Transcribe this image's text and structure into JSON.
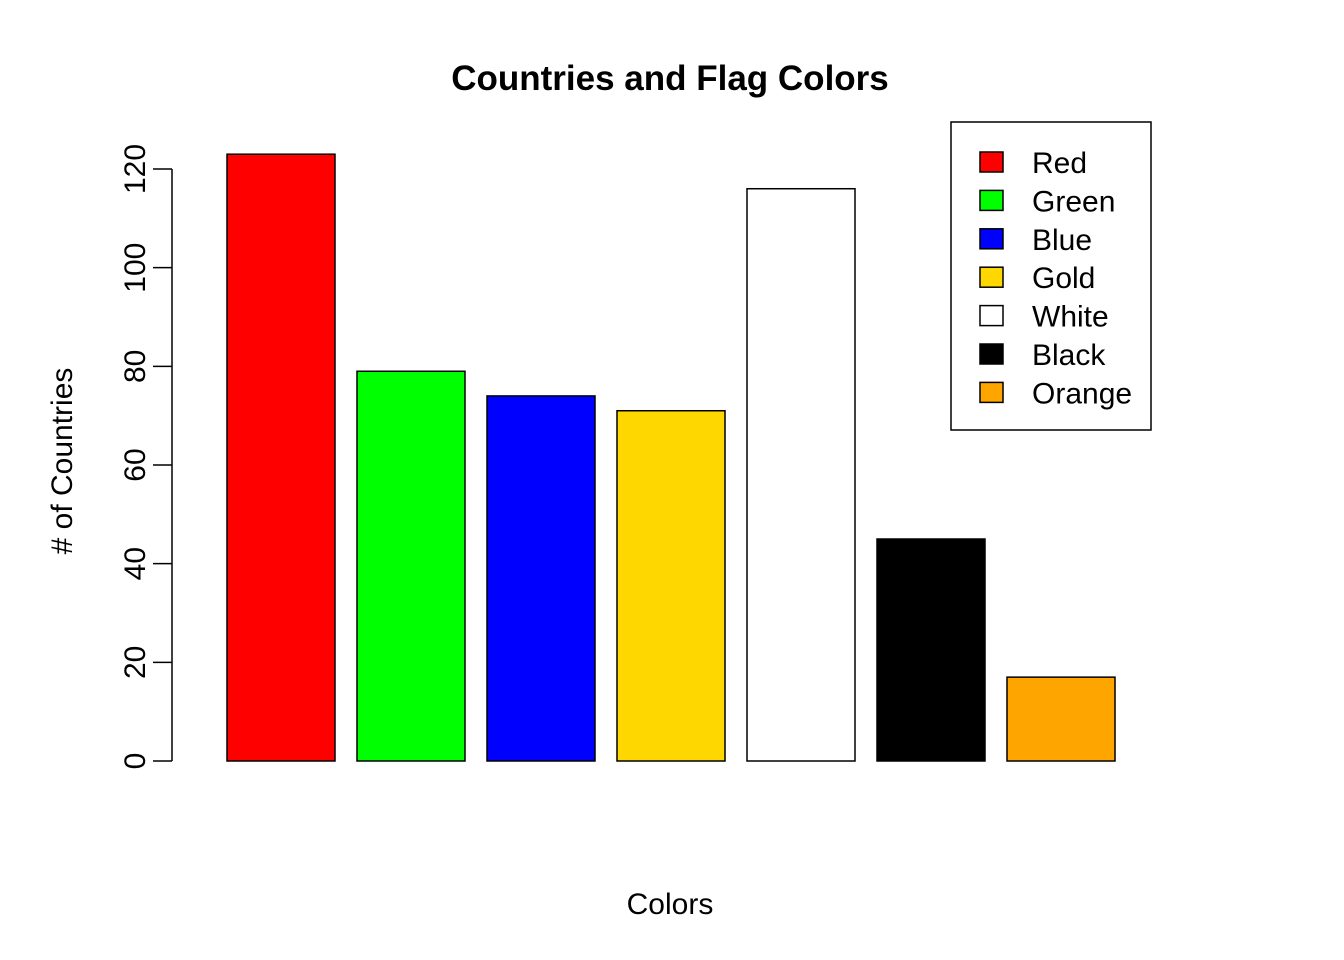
{
  "chart_data": {
    "type": "bar",
    "title": "Countries and Flag Colors",
    "xlabel": "Colors",
    "ylabel": "# of Countries",
    "categories": [
      "Red",
      "Green",
      "Blue",
      "Gold",
      "White",
      "Black",
      "Orange"
    ],
    "values": [
      123,
      79,
      74,
      71,
      116,
      45,
      17
    ],
    "colors": [
      "#FF0000",
      "#00FF00",
      "#0000FF",
      "#FFD700",
      "#FFFFFF",
      "#000000",
      "#FFA500"
    ],
    "ylim": [
      0,
      120
    ],
    "yticks": [
      0,
      20,
      40,
      60,
      80,
      100,
      120
    ],
    "grid": false,
    "legend": {
      "position": "top-right",
      "entries": [
        "Red",
        "Green",
        "Blue",
        "Gold",
        "White",
        "Black",
        "Orange"
      ]
    }
  }
}
